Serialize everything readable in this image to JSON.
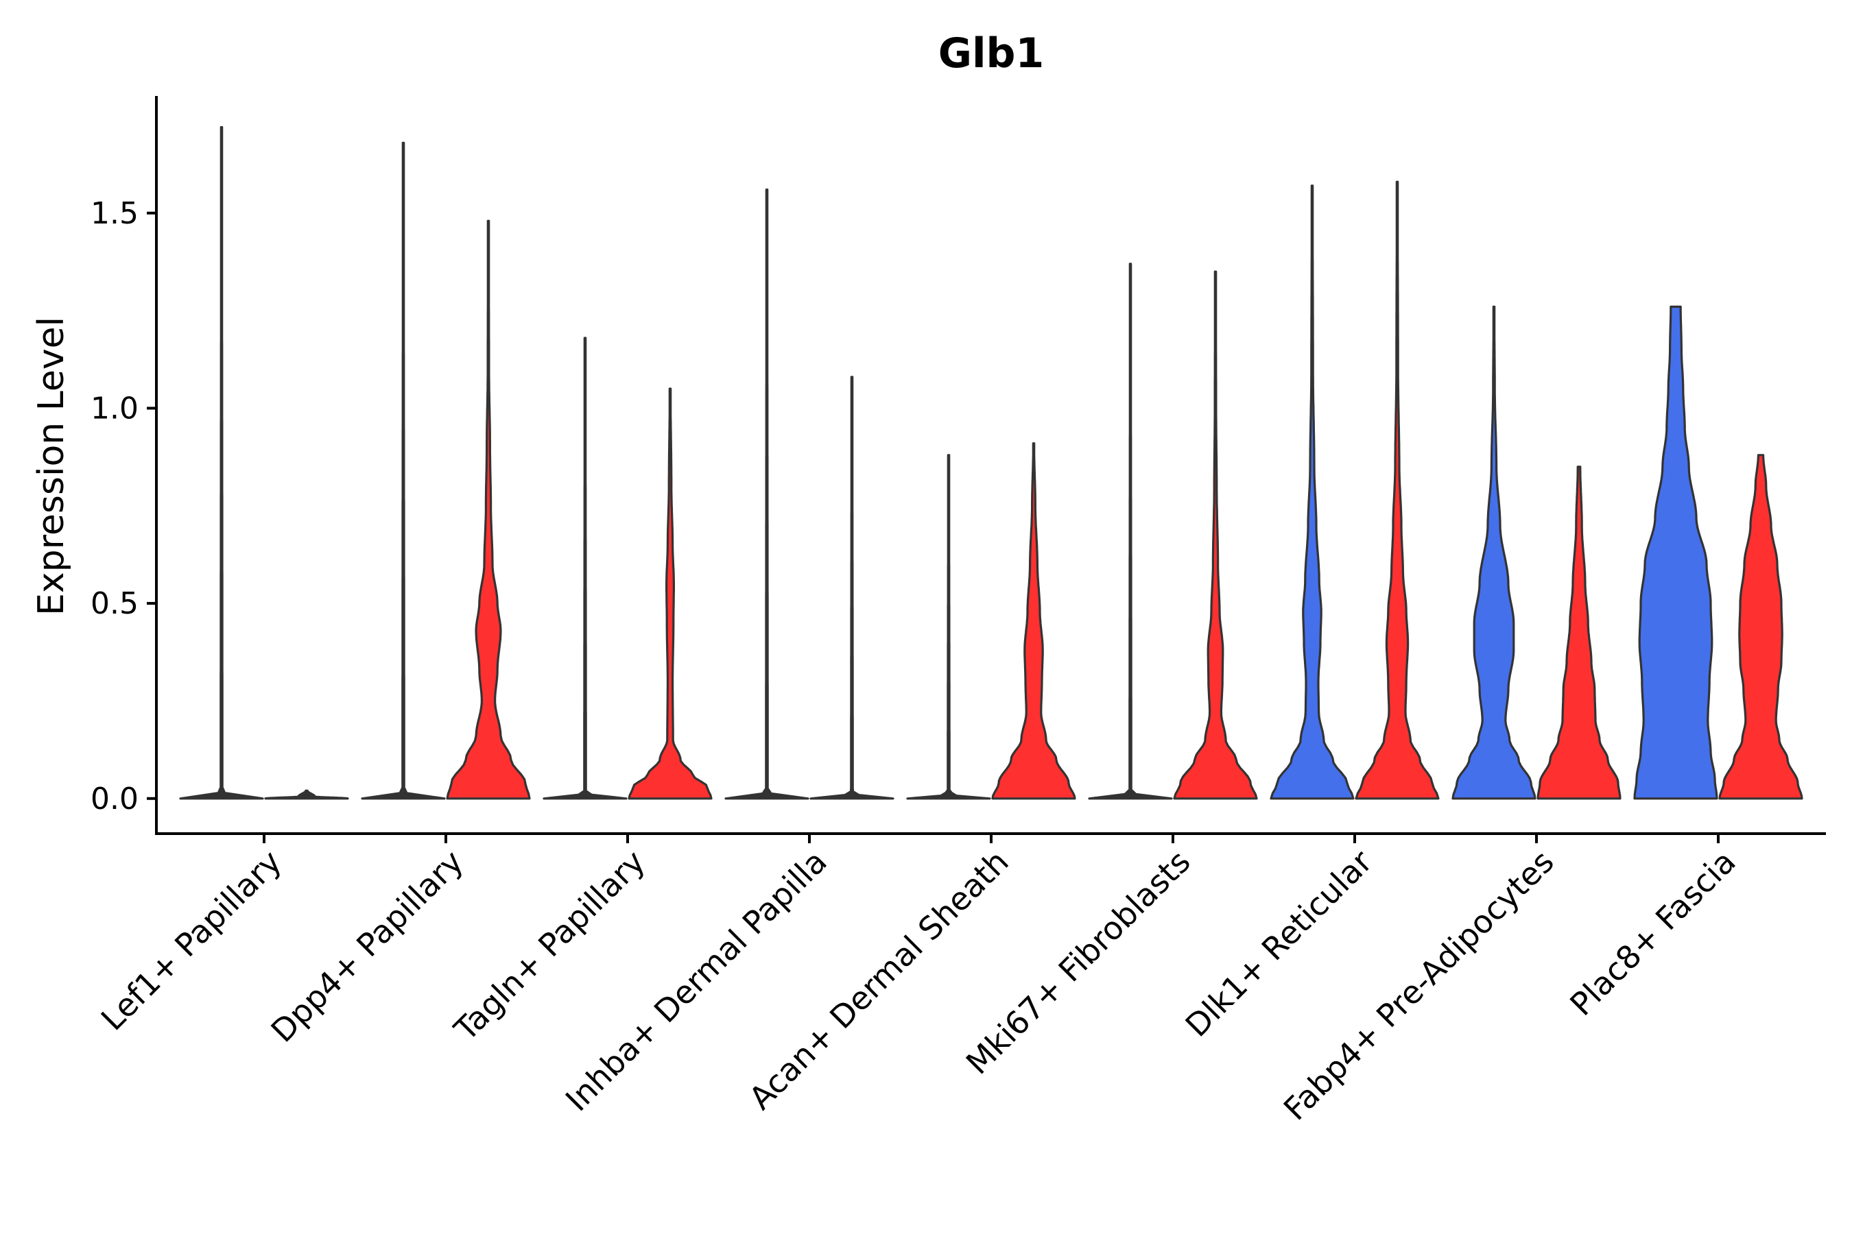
{
  "chart_data": {
    "type": "violin",
    "title": "Glb1",
    "xlabel": "",
    "ylabel": "Expression Level",
    "ylim": [
      -0.09,
      1.8
    ],
    "yticks": [
      0.0,
      0.5,
      1.0,
      1.5
    ],
    "ytick_labels": [
      "0.0",
      "0.5",
      "1.0",
      "1.5"
    ],
    "categories": [
      "Lef1+ Papillary",
      "Dpp4+ Papillary",
      "Tagln+ Papillary",
      "Inhba+ Dermal Papilla",
      "Acan+ Dermal Sheath",
      "Mki67+ Fibroblasts",
      "Dlk1+ Reticular",
      "Fabp4+ Pre-Adipocytes",
      "Plac8+ Fascia"
    ],
    "series_colors": {
      "blue": "#4470eb",
      "red": "#ff3030",
      "line": "#333333"
    },
    "violins": [
      {
        "category": 0,
        "side": "left",
        "color": "line",
        "max": 1.72,
        "max_halfwidth": 0.9,
        "peak_halfwidth": 0.45,
        "density": [
          [
            0,
            1
          ],
          [
            0.005,
            0.2
          ],
          [
            0.02,
            0.02
          ],
          [
            1.72,
            0.01
          ]
        ]
      },
      {
        "category": 0,
        "side": "right",
        "color": "line",
        "max": 0.0,
        "max_halfwidth": 0.9,
        "peak_halfwidth": 0.45,
        "density": [
          [
            0,
            1
          ],
          [
            0.005,
            0.2
          ],
          [
            0.02,
            0.02
          ]
        ]
      },
      {
        "category": 1,
        "side": "left",
        "color": "line",
        "max": 1.68,
        "max_halfwidth": 0.9,
        "peak_halfwidth": 0.45,
        "density": [
          [
            0,
            1
          ],
          [
            0.005,
            0.2
          ],
          [
            0.02,
            0.02
          ],
          [
            1.68,
            0.01
          ]
        ]
      },
      {
        "category": 1,
        "side": "right",
        "color": "red",
        "max": 1.48,
        "max_halfwidth": 0.9,
        "peak_halfwidth": 0.45,
        "density": [
          [
            0,
            1
          ],
          [
            0.04,
            0.9
          ],
          [
            0.1,
            0.55
          ],
          [
            0.16,
            0.3
          ],
          [
            0.25,
            0.16
          ],
          [
            0.33,
            0.22
          ],
          [
            0.43,
            0.3
          ],
          [
            0.5,
            0.22
          ],
          [
            0.6,
            0.1
          ],
          [
            0.75,
            0.06
          ],
          [
            0.9,
            0.04
          ],
          [
            1.1,
            0.015
          ],
          [
            1.48,
            0.008
          ]
        ]
      },
      {
        "category": 2,
        "side": "left",
        "color": "line",
        "max": 1.18,
        "max_halfwidth": 0.9,
        "peak_halfwidth": 0.45,
        "density": [
          [
            0,
            1
          ],
          [
            0.005,
            0.2
          ],
          [
            0.02,
            0.02
          ],
          [
            1.18,
            0.01
          ]
        ]
      },
      {
        "category": 2,
        "side": "right",
        "color": "red",
        "max": 1.05,
        "max_halfwidth": 0.9,
        "peak_halfwidth": 0.45,
        "density": [
          [
            0,
            1
          ],
          [
            0.03,
            0.9
          ],
          [
            0.06,
            0.55
          ],
          [
            0.1,
            0.25
          ],
          [
            0.15,
            0.07
          ],
          [
            0.3,
            0.06
          ],
          [
            0.45,
            0.08
          ],
          [
            0.55,
            0.09
          ],
          [
            0.65,
            0.06
          ],
          [
            0.8,
            0.03
          ],
          [
            1.05,
            0.008
          ]
        ]
      },
      {
        "category": 3,
        "side": "left",
        "color": "line",
        "max": 1.56,
        "max_halfwidth": 0.9,
        "peak_halfwidth": 0.45,
        "density": [
          [
            0,
            1
          ],
          [
            0.005,
            0.2
          ],
          [
            0.02,
            0.02
          ],
          [
            1.56,
            0.01
          ]
        ]
      },
      {
        "category": 3,
        "side": "right",
        "color": "line",
        "max": 1.08,
        "max_halfwidth": 0.9,
        "peak_halfwidth": 0.45,
        "density": [
          [
            0,
            1
          ],
          [
            0.005,
            0.2
          ],
          [
            0.02,
            0.02
          ],
          [
            1.08,
            0.01
          ]
        ]
      },
      {
        "category": 4,
        "side": "left",
        "color": "line",
        "max": 0.88,
        "max_halfwidth": 0.9,
        "peak_halfwidth": 0.45,
        "density": [
          [
            0,
            1
          ],
          [
            0.005,
            0.2
          ],
          [
            0.02,
            0.02
          ],
          [
            0.88,
            0.01
          ]
        ]
      },
      {
        "category": 4,
        "side": "right",
        "color": "red",
        "max": 0.91,
        "max_halfwidth": 0.9,
        "peak_halfwidth": 0.45,
        "density": [
          [
            0,
            1
          ],
          [
            0.04,
            0.85
          ],
          [
            0.1,
            0.55
          ],
          [
            0.15,
            0.3
          ],
          [
            0.22,
            0.18
          ],
          [
            0.3,
            0.2
          ],
          [
            0.38,
            0.22
          ],
          [
            0.48,
            0.15
          ],
          [
            0.6,
            0.09
          ],
          [
            0.75,
            0.04
          ],
          [
            0.91,
            0.008
          ]
        ]
      },
      {
        "category": 5,
        "side": "left",
        "color": "line",
        "max": 1.37,
        "max_halfwidth": 0.9,
        "peak_halfwidth": 0.45,
        "density": [
          [
            0,
            1
          ],
          [
            0.005,
            0.2
          ],
          [
            0.02,
            0.02
          ],
          [
            1.37,
            0.01
          ]
        ]
      },
      {
        "category": 5,
        "side": "right",
        "color": "red",
        "max": 1.35,
        "max_halfwidth": 0.9,
        "peak_halfwidth": 0.45,
        "density": [
          [
            0,
            1
          ],
          [
            0.04,
            0.85
          ],
          [
            0.1,
            0.5
          ],
          [
            0.15,
            0.25
          ],
          [
            0.22,
            0.14
          ],
          [
            0.3,
            0.17
          ],
          [
            0.38,
            0.18
          ],
          [
            0.48,
            0.1
          ],
          [
            0.6,
            0.06
          ],
          [
            0.8,
            0.03
          ],
          [
            1.0,
            0.015
          ],
          [
            1.35,
            0.008
          ]
        ]
      },
      {
        "category": 6,
        "side": "left",
        "color": "blue",
        "max": 1.57,
        "max_halfwidth": 0.9,
        "peak_halfwidth": 0.45,
        "density": [
          [
            0,
            1
          ],
          [
            0.04,
            0.85
          ],
          [
            0.1,
            0.5
          ],
          [
            0.15,
            0.28
          ],
          [
            0.22,
            0.16
          ],
          [
            0.3,
            0.15
          ],
          [
            0.4,
            0.2
          ],
          [
            0.48,
            0.22
          ],
          [
            0.56,
            0.17
          ],
          [
            0.7,
            0.1
          ],
          [
            0.85,
            0.05
          ],
          [
            1.1,
            0.02
          ],
          [
            1.57,
            0.008
          ]
        ]
      },
      {
        "category": 6,
        "side": "right",
        "color": "red",
        "max": 1.58,
        "max_halfwidth": 0.9,
        "peak_halfwidth": 0.45,
        "density": [
          [
            0,
            1
          ],
          [
            0.04,
            0.85
          ],
          [
            0.1,
            0.55
          ],
          [
            0.15,
            0.32
          ],
          [
            0.22,
            0.2
          ],
          [
            0.3,
            0.22
          ],
          [
            0.4,
            0.26
          ],
          [
            0.48,
            0.22
          ],
          [
            0.58,
            0.14
          ],
          [
            0.7,
            0.1
          ],
          [
            0.85,
            0.05
          ],
          [
            1.1,
            0.02
          ],
          [
            1.58,
            0.008
          ]
        ]
      },
      {
        "category": 7,
        "side": "left",
        "color": "blue",
        "max": 1.26,
        "max_halfwidth": 0.9,
        "peak_halfwidth": 0.45,
        "density": [
          [
            0,
            1
          ],
          [
            0.04,
            0.9
          ],
          [
            0.1,
            0.6
          ],
          [
            0.15,
            0.38
          ],
          [
            0.2,
            0.28
          ],
          [
            0.28,
            0.35
          ],
          [
            0.38,
            0.48
          ],
          [
            0.45,
            0.48
          ],
          [
            0.55,
            0.35
          ],
          [
            0.7,
            0.15
          ],
          [
            0.85,
            0.06
          ],
          [
            1.05,
            0.02
          ],
          [
            1.26,
            0.008
          ]
        ]
      },
      {
        "category": 7,
        "side": "right",
        "color": "red",
        "max": 0.85,
        "max_halfwidth": 0.9,
        "peak_halfwidth": 0.45,
        "density": [
          [
            0,
            1
          ],
          [
            0.04,
            0.95
          ],
          [
            0.1,
            0.7
          ],
          [
            0.15,
            0.5
          ],
          [
            0.2,
            0.4
          ],
          [
            0.28,
            0.38
          ],
          [
            0.35,
            0.3
          ],
          [
            0.45,
            0.22
          ],
          [
            0.55,
            0.15
          ],
          [
            0.7,
            0.07
          ],
          [
            0.85,
            0.03
          ]
        ]
      },
      {
        "category": 8,
        "side": "left",
        "color": "blue",
        "max": 1.26,
        "max_halfwidth": 0.9,
        "peak_halfwidth": 0.45,
        "density": [
          [
            0,
            1
          ],
          [
            0.05,
            0.95
          ],
          [
            0.12,
            0.85
          ],
          [
            0.2,
            0.78
          ],
          [
            0.3,
            0.82
          ],
          [
            0.4,
            0.88
          ],
          [
            0.5,
            0.85
          ],
          [
            0.6,
            0.75
          ],
          [
            0.72,
            0.5
          ],
          [
            0.85,
            0.32
          ],
          [
            0.95,
            0.22
          ],
          [
            1.05,
            0.18
          ],
          [
            1.15,
            0.14
          ],
          [
            1.26,
            0.12
          ]
        ]
      },
      {
        "category": 8,
        "side": "right",
        "color": "red",
        "max": 0.88,
        "max_halfwidth": 0.9,
        "peak_halfwidth": 0.45,
        "density": [
          [
            0,
            1
          ],
          [
            0.04,
            0.9
          ],
          [
            0.1,
            0.65
          ],
          [
            0.15,
            0.45
          ],
          [
            0.2,
            0.37
          ],
          [
            0.28,
            0.42
          ],
          [
            0.35,
            0.5
          ],
          [
            0.42,
            0.52
          ],
          [
            0.5,
            0.5
          ],
          [
            0.6,
            0.4
          ],
          [
            0.7,
            0.25
          ],
          [
            0.8,
            0.13
          ],
          [
            0.88,
            0.06
          ]
        ]
      }
    ]
  }
}
